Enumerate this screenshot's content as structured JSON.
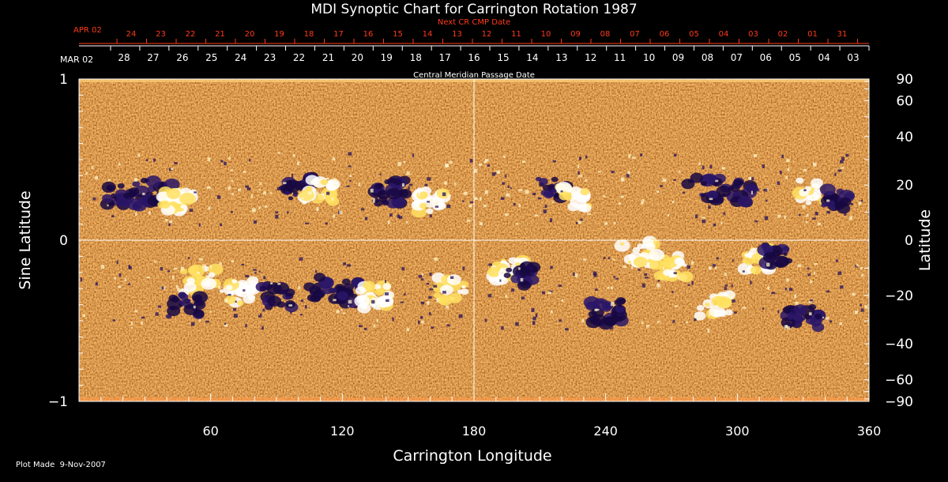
{
  "chart_data": {
    "type": "heatmap",
    "title": "MDI Synoptic Chart for Carrington Rotation 1987",
    "xlabel": "Carrington Longitude",
    "ylabel_left": "Sine Latitude",
    "ylabel_right": "Latitude",
    "xlim": [
      0,
      360
    ],
    "ylim_sine": [
      -1,
      1
    ],
    "x_ticks": [
      60,
      120,
      180,
      240,
      300,
      360
    ],
    "y_ticks_left": [
      {
        "v": 1,
        "label": "1"
      },
      {
        "v": 0,
        "label": "0"
      },
      {
        "v": -1,
        "label": "−1"
      }
    ],
    "y_ticks_right": [
      {
        "lat": 90,
        "label": "90"
      },
      {
        "lat": 60,
        "label": "60"
      },
      {
        "lat": 40,
        "label": "40"
      },
      {
        "lat": 20,
        "label": "20"
      },
      {
        "lat": 0,
        "label": "0"
      },
      {
        "lat": -20,
        "label": "−20"
      },
      {
        "lat": -40,
        "label": "−40"
      },
      {
        "lat": -60,
        "label": "−60"
      },
      {
        "lat": -90,
        "label": "−90"
      }
    ],
    "cmp_axis": {
      "title": "Central Meridian Passage Date",
      "start_label": "MAR 02",
      "labels": [
        "28",
        "27",
        "26",
        "25",
        "24",
        "23",
        "22",
        "21",
        "20",
        "19",
        "18",
        "17",
        "16",
        "15",
        "14",
        "13",
        "12",
        "11",
        "10",
        "09",
        "08",
        "07",
        "06",
        "05",
        "04",
        "03"
      ]
    },
    "next_cr_axis": {
      "title": "Next CR CMP Date",
      "start_label": "APR 02",
      "labels": [
        "24",
        "23",
        "22",
        "21",
        "20",
        "19",
        "18",
        "17",
        "16",
        "15",
        "14",
        "13",
        "12",
        "11",
        "10",
        "09",
        "08",
        "07",
        "06",
        "05",
        "04",
        "03",
        "02",
        "01",
        "31"
      ]
    },
    "colors": {
      "background": "#000000",
      "field_base": "#e0461a",
      "positive": "#ffffff",
      "negative": "#1c0b4a",
      "axis_red": "#ff3a1a"
    },
    "footer": "Plot Made  9-Nov-2007"
  }
}
